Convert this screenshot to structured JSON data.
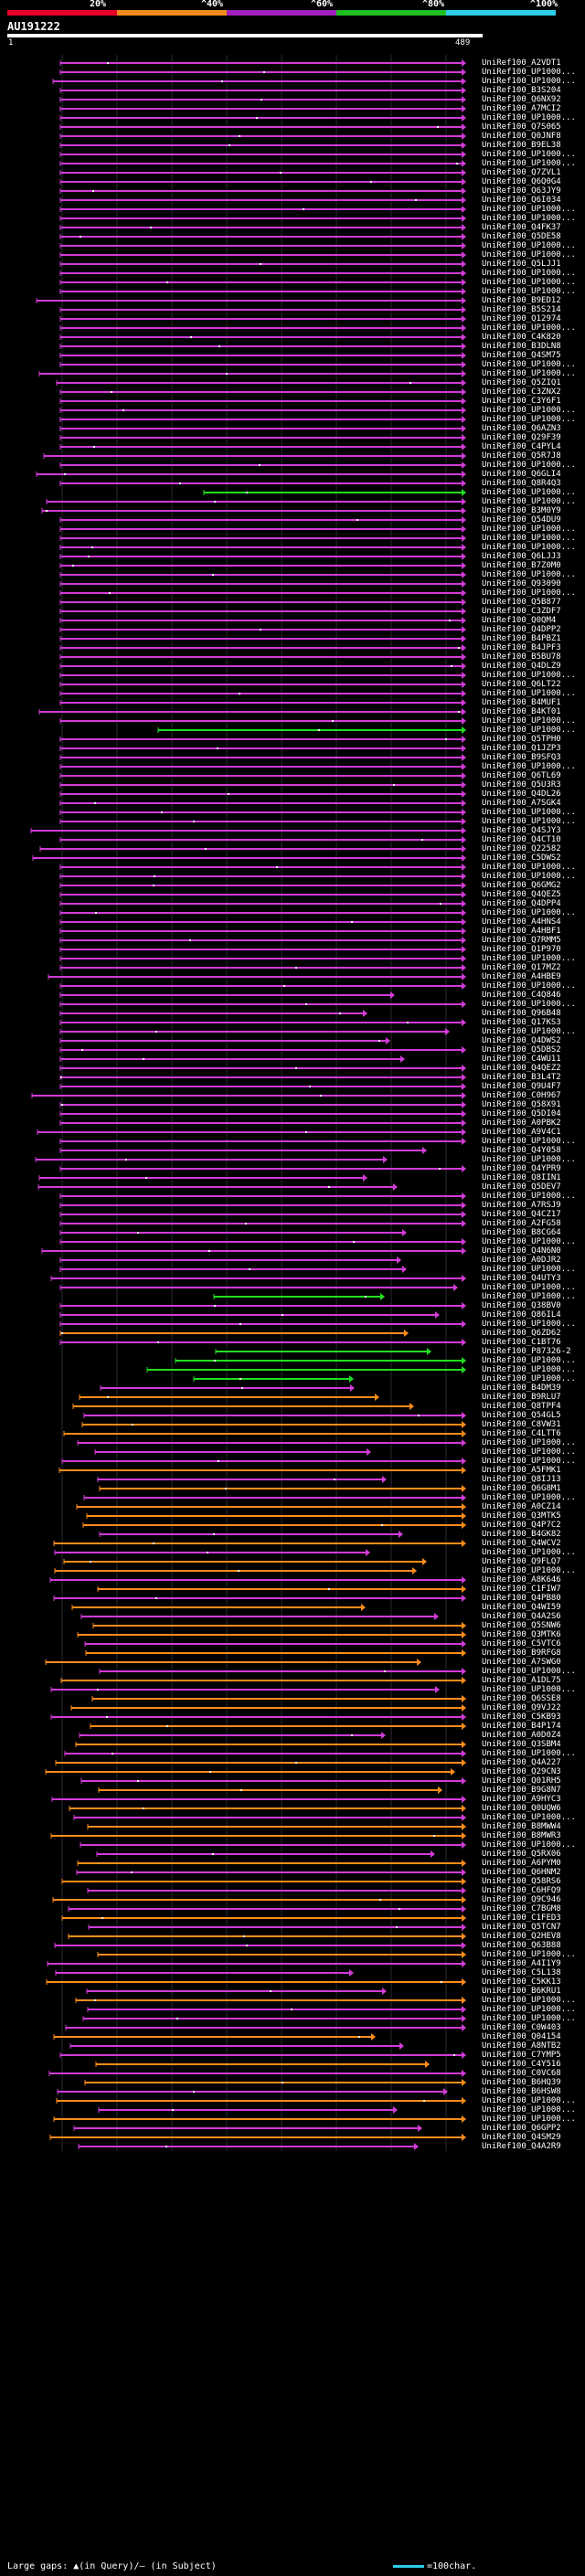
{
  "scale": {
    "labels": [
      "20%",
      "^40%",
      "^60%",
      "^80%",
      "^100%"
    ],
    "colors": [
      "#e8002a",
      "#f28c1a",
      "#a01fbd",
      "#1fbf1f",
      "#2ccde6"
    ]
  },
  "query": {
    "name": "AU191222",
    "start": "1",
    "end": "489"
  },
  "colors": {
    "magenta": "#d23bd8",
    "orange": "#ff8c1a",
    "green": "#22dd22"
  },
  "hits": [
    {
      "label": "UniRef100_A2VDT1",
      "color": "magenta"
    },
    {
      "label": "UniRef100_UP1000...",
      "color": "magenta"
    },
    {
      "label": "UniRef100_UP1000...",
      "color": "magenta"
    },
    {
      "label": "UniRef100_B3S204",
      "color": "magenta"
    },
    {
      "label": "UniRef100_Q6NX92",
      "color": "magenta"
    },
    {
      "label": "UniRef100_A7MCI2",
      "color": "magenta"
    },
    {
      "label": "UniRef100_UP1000...",
      "color": "magenta"
    },
    {
      "label": "UniRef100_Q7S065",
      "color": "magenta"
    },
    {
      "label": "UniRef100_Q0JNF8",
      "color": "magenta"
    },
    {
      "label": "UniRef100_B9EL38",
      "color": "magenta"
    },
    {
      "label": "UniRef100_UP1000...",
      "color": "magenta"
    },
    {
      "label": "UniRef100_UP1000...",
      "color": "magenta"
    },
    {
      "label": "UniRef100_Q7ZVL1",
      "color": "magenta"
    },
    {
      "label": "UniRef100_Q6Q0G4",
      "color": "magenta"
    },
    {
      "label": "UniRef100_Q63JY9",
      "color": "magenta"
    },
    {
      "label": "UniRef100_Q6I034",
      "color": "magenta"
    },
    {
      "label": "UniRef100_UP1000...",
      "color": "magenta"
    },
    {
      "label": "UniRef100_UP1000...",
      "color": "magenta"
    },
    {
      "label": "UniRef100_Q4FK37",
      "color": "magenta"
    },
    {
      "label": "UniRef100_Q5DE58",
      "color": "magenta"
    },
    {
      "label": "UniRef100_UP1000...",
      "color": "magenta"
    },
    {
      "label": "UniRef100_UP1000...",
      "color": "magenta"
    },
    {
      "label": "UniRef100_Q5LJJ1",
      "color": "magenta"
    },
    {
      "label": "UniRef100_UP1000...",
      "color": "magenta"
    },
    {
      "label": "UniRef100_UP1000...",
      "color": "magenta"
    },
    {
      "label": "UniRef100_UP1000...",
      "color": "magenta"
    },
    {
      "label": "UniRef100_B9ED12",
      "color": "magenta"
    },
    {
      "label": "UniRef100_B5S214",
      "color": "magenta"
    },
    {
      "label": "UniRef100_Q12974",
      "color": "magenta"
    },
    {
      "label": "UniRef100_UP1000...",
      "color": "magenta"
    },
    {
      "label": "UniRef100_C4K820",
      "color": "magenta"
    },
    {
      "label": "UniRef100_B3DLN8",
      "color": "magenta"
    },
    {
      "label": "UniRef100_Q4SM75",
      "color": "magenta"
    },
    {
      "label": "UniRef100_UP1000...",
      "color": "magenta"
    },
    {
      "label": "UniRef100_UP1000...",
      "color": "magenta"
    },
    {
      "label": "UniRef100_Q5ZIQ1",
      "color": "magenta"
    },
    {
      "label": "UniRef100_C3ZNX2",
      "color": "magenta"
    },
    {
      "label": "UniRef100_C3Y6F1",
      "color": "magenta"
    },
    {
      "label": "UniRef100_UP1000...",
      "color": "magenta"
    },
    {
      "label": "UniRef100_UP1000...",
      "color": "magenta"
    },
    {
      "label": "UniRef100_Q6AZN3",
      "color": "magenta"
    },
    {
      "label": "UniRef100_Q29F39",
      "color": "magenta"
    },
    {
      "label": "UniRef100_C4PYL4",
      "color": "magenta"
    },
    {
      "label": "UniRef100_Q5R7J8",
      "color": "magenta"
    },
    {
      "label": "UniRef100_UP1000...",
      "color": "magenta"
    },
    {
      "label": "UniRef100_Q6GLI4",
      "color": "magenta"
    },
    {
      "label": "UniRef100_Q8R4Q3",
      "color": "magenta"
    },
    {
      "label": "UniRef100_UP1000...",
      "color": "green"
    },
    {
      "label": "UniRef100_UP1000...",
      "color": "magenta"
    },
    {
      "label": "UniRef100_B3M0Y9",
      "color": "magenta"
    },
    {
      "label": "UniRef100_Q54DU9",
      "color": "magenta"
    },
    {
      "label": "UniRef100_UP1000...",
      "color": "magenta"
    },
    {
      "label": "UniRef100_UP1000...",
      "color": "magenta"
    },
    {
      "label": "UniRef100_UP1000...",
      "color": "magenta"
    },
    {
      "label": "UniRef100_Q6LJJ3",
      "color": "magenta"
    },
    {
      "label": "UniRef100_B7Z0M0",
      "color": "magenta"
    },
    {
      "label": "UniRef100_UP1000...",
      "color": "magenta"
    },
    {
      "label": "UniRef100_Q93090",
      "color": "magenta"
    },
    {
      "label": "UniRef100_UP1000...",
      "color": "magenta"
    },
    {
      "label": "UniRef100_Q5B877",
      "color": "magenta"
    },
    {
      "label": "UniRef100_C3ZDF7",
      "color": "magenta"
    },
    {
      "label": "UniRef100_Q0QM4",
      "color": "magenta"
    },
    {
      "label": "UniRef100_Q4DPP2",
      "color": "magenta"
    },
    {
      "label": "UniRef100_B4PBZ1",
      "color": "magenta"
    },
    {
      "label": "UniRef100_B4JPF3",
      "color": "magenta"
    },
    {
      "label": "UniRef100_B5BU78",
      "color": "magenta"
    },
    {
      "label": "UniRef100_Q4DLZ9",
      "color": "magenta"
    },
    {
      "label": "UniRef100_UP1000...",
      "color": "magenta"
    },
    {
      "label": "UniRef100_Q6LT22",
      "color": "magenta"
    },
    {
      "label": "UniRef100_UP1000...",
      "color": "magenta"
    },
    {
      "label": "UniRef100_B4MUF1",
      "color": "magenta"
    },
    {
      "label": "UniRef100_B4KT01",
      "color": "magenta"
    },
    {
      "label": "UniRef100_UP1000...",
      "color": "magenta"
    },
    {
      "label": "UniRef100_UP1000...",
      "color": "green"
    },
    {
      "label": "UniRef100_Q5TPH0",
      "color": "magenta"
    },
    {
      "label": "UniRef100_Q1JZP3",
      "color": "magenta"
    },
    {
      "label": "UniRef100_B9SFQ3",
      "color": "magenta"
    },
    {
      "label": "UniRef100_UP1000...",
      "color": "magenta"
    },
    {
      "label": "UniRef100_Q6TL69",
      "color": "magenta"
    },
    {
      "label": "UniRef100_Q5U3R3",
      "color": "magenta"
    },
    {
      "label": "UniRef100_Q4DL26",
      "color": "magenta"
    },
    {
      "label": "UniRef100_A7SGK4",
      "color": "magenta"
    },
    {
      "label": "UniRef100_UP1000...",
      "color": "magenta"
    },
    {
      "label": "UniRef100_UP1000...",
      "color": "magenta"
    },
    {
      "label": "UniRef100_Q4SJY3",
      "color": "magenta"
    },
    {
      "label": "UniRef100_Q4CT10",
      "color": "magenta"
    },
    {
      "label": "UniRef100_Q22582",
      "color": "magenta"
    },
    {
      "label": "UniRef100_C5DWS2",
      "color": "magenta"
    },
    {
      "label": "UniRef100_UP1000...",
      "color": "magenta"
    },
    {
      "label": "UniRef100_UP1000...",
      "color": "magenta"
    },
    {
      "label": "UniRef100_Q6GMG2",
      "color": "magenta"
    },
    {
      "label": "UniRef100_Q4QEZ5",
      "color": "magenta"
    },
    {
      "label": "UniRef100_Q4DPP4",
      "color": "magenta"
    },
    {
      "label": "UniRef100_UP1000...",
      "color": "magenta"
    },
    {
      "label": "UniRef100_A4HNS4",
      "color": "magenta"
    },
    {
      "label": "UniRef100_A4HBF1",
      "color": "magenta"
    },
    {
      "label": "UniRef100_Q7RMM5",
      "color": "magenta"
    },
    {
      "label": "UniRef100_Q1P970",
      "color": "magenta"
    },
    {
      "label": "UniRef100_UP1000...",
      "color": "magenta"
    },
    {
      "label": "UniRef100_Q17MZ2",
      "color": "magenta"
    },
    {
      "label": "UniRef100_A4HBE9",
      "color": "magenta"
    },
    {
      "label": "UniRef100_UP1000...",
      "color": "magenta"
    },
    {
      "label": "UniRef100_C4Q846",
      "color": "magenta"
    },
    {
      "label": "UniRef100_UP1000...",
      "color": "magenta"
    },
    {
      "label": "UniRef100_Q96B48",
      "color": "magenta"
    },
    {
      "label": "UniRef100_Q17KS3",
      "color": "magenta"
    },
    {
      "label": "UniRef100_UP1000...",
      "color": "magenta"
    },
    {
      "label": "UniRef100_Q4DWS2",
      "color": "magenta"
    },
    {
      "label": "UniRef100_Q5DBS2",
      "color": "magenta"
    },
    {
      "label": "UniRef100_C4WU11",
      "color": "magenta"
    },
    {
      "label": "UniRef100_Q4QEZ2",
      "color": "magenta"
    },
    {
      "label": "UniRef100_B3L4T2",
      "color": "magenta"
    },
    {
      "label": "UniRef100_Q9U4F7",
      "color": "magenta"
    },
    {
      "label": "UniRef100_C0H967",
      "color": "magenta"
    },
    {
      "label": "UniRef100_Q58X91",
      "color": "magenta"
    },
    {
      "label": "UniRef100_Q5DI04",
      "color": "magenta"
    },
    {
      "label": "UniRef100_A0PBK2",
      "color": "magenta"
    },
    {
      "label": "UniRef100_A9V4C1",
      "color": "magenta"
    },
    {
      "label": "UniRef100_UP1000...",
      "color": "magenta"
    },
    {
      "label": "UniRef100_Q4Y058",
      "color": "magenta"
    },
    {
      "label": "UniRef100_UP1000...",
      "color": "magenta"
    },
    {
      "label": "UniRef100_Q4YPR9",
      "color": "magenta"
    },
    {
      "label": "UniRef100_Q8IIN1",
      "color": "magenta"
    },
    {
      "label": "UniRef100_Q5DEV7",
      "color": "magenta"
    },
    {
      "label": "UniRef100_UP1000...",
      "color": "magenta"
    },
    {
      "label": "UniRef100_A7RSJ9",
      "color": "magenta"
    },
    {
      "label": "UniRef100_Q4CZ17",
      "color": "magenta"
    },
    {
      "label": "UniRef100_A2FG58",
      "color": "magenta"
    },
    {
      "label": "UniRef100_B8CG64",
      "color": "magenta"
    },
    {
      "label": "UniRef100_UP1000...",
      "color": "magenta"
    },
    {
      "label": "UniRef100_Q4N6N0",
      "color": "magenta"
    },
    {
      "label": "UniRef100_A0DJR2",
      "color": "magenta"
    },
    {
      "label": "UniRef100_UP1000...",
      "color": "magenta"
    },
    {
      "label": "UniRef100_Q4UTY3",
      "color": "magenta"
    },
    {
      "label": "UniRef100_UP1000...",
      "color": "magenta"
    },
    {
      "label": "UniRef100_UP1000...",
      "color": "green"
    },
    {
      "label": "UniRef100_Q38BV0",
      "color": "magenta"
    },
    {
      "label": "UniRef100_Q86IL4",
      "color": "magenta"
    },
    {
      "label": "UniRef100_UP1000...",
      "color": "magenta"
    },
    {
      "label": "UniRef100_Q6ZD62",
      "color": "orange"
    },
    {
      "label": "UniRef100_C1BT76",
      "color": "magenta"
    },
    {
      "label": "UniRef100_P87326-2",
      "color": "green"
    },
    {
      "label": "UniRef100_UP1000...",
      "color": "green"
    },
    {
      "label": "UniRef100_UP1000...",
      "color": "green"
    },
    {
      "label": "UniRef100_UP1000...",
      "color": "green"
    },
    {
      "label": "UniRef100_B4DM39",
      "color": "magenta"
    },
    {
      "label": "UniRef100_B9RLU7",
      "color": "orange"
    },
    {
      "label": "UniRef100_Q8TPF4",
      "color": "orange"
    },
    {
      "label": "UniRef100_Q54GL5",
      "color": "magenta"
    },
    {
      "label": "UniRef100_C8VW31",
      "color": "orange"
    },
    {
      "label": "UniRef100_C4LTT6",
      "color": "orange"
    },
    {
      "label": "UniRef100_UP1000...",
      "color": "magenta"
    },
    {
      "label": "UniRef100_UP1000...",
      "color": "magenta"
    },
    {
      "label": "UniRef100_UP1000...",
      "color": "magenta"
    },
    {
      "label": "UniRef100_A5FMK1",
      "color": "orange"
    },
    {
      "label": "UniRef100_Q8IJ13",
      "color": "magenta"
    },
    {
      "label": "UniRef100_Q6G8M1",
      "color": "orange"
    },
    {
      "label": "UniRef100_UP1000...",
      "color": "magenta"
    },
    {
      "label": "UniRef100_A0CZ14",
      "color": "orange"
    },
    {
      "label": "UniRef100_Q3MTK5",
      "color": "orange"
    },
    {
      "label": "UniRef100_Q4P7C2",
      "color": "orange"
    },
    {
      "label": "UniRef100_B4GK82",
      "color": "magenta"
    },
    {
      "label": "UniRef100_Q4WCV2",
      "color": "orange"
    },
    {
      "label": "UniRef100_UP1000...",
      "color": "magenta"
    },
    {
      "label": "UniRef100_Q9FLQ7",
      "color": "orange"
    },
    {
      "label": "UniRef100_UP1000...",
      "color": "orange"
    },
    {
      "label": "UniRef100_A8K646",
      "color": "magenta"
    },
    {
      "label": "UniRef100_C1FIW7",
      "color": "orange"
    },
    {
      "label": "UniRef100_Q4PB80",
      "color": "magenta"
    },
    {
      "label": "UniRef100_Q4WI59",
      "color": "orange"
    },
    {
      "label": "UniRef100_Q4A2S6",
      "color": "magenta"
    },
    {
      "label": "UniRef100_Q5SNW6",
      "color": "orange"
    },
    {
      "label": "UniRef100_Q3MTK6",
      "color": "orange"
    },
    {
      "label": "UniRef100_C5VTC6",
      "color": "magenta"
    },
    {
      "label": "UniRef100_B9RFG8",
      "color": "orange"
    },
    {
      "label": "UniRef100_A7SWG0",
      "color": "orange"
    },
    {
      "label": "UniRef100_UP1000...",
      "color": "magenta"
    },
    {
      "label": "UniRef100_A1DL75",
      "color": "orange"
    },
    {
      "label": "UniRef100_UP1000...",
      "color": "magenta"
    },
    {
      "label": "UniRef100_Q6SSE8",
      "color": "orange"
    },
    {
      "label": "UniRef100_Q9VJ22",
      "color": "orange"
    },
    {
      "label": "UniRef100_C5KB93",
      "color": "magenta"
    },
    {
      "label": "UniRef100_B4P174",
      "color": "orange"
    },
    {
      "label": "UniRef100_A0D0Z4",
      "color": "magenta"
    },
    {
      "label": "UniRef100_Q3SBM4",
      "color": "orange"
    },
    {
      "label": "UniRef100_UP1000...",
      "color": "magenta"
    },
    {
      "label": "UniRef100_Q4A227",
      "color": "orange"
    },
    {
      "label": "UniRef100_Q29CN3",
      "color": "orange"
    },
    {
      "label": "UniRef100_Q01RH5",
      "color": "magenta"
    },
    {
      "label": "UniRef100_B9G8N7",
      "color": "orange"
    },
    {
      "label": "UniRef100_A9HYC3",
      "color": "magenta"
    },
    {
      "label": "UniRef100_Q0UQW6",
      "color": "orange"
    },
    {
      "label": "UniRef100_UP1000...",
      "color": "magenta"
    },
    {
      "label": "UniRef100_B8MWW4",
      "color": "orange"
    },
    {
      "label": "UniRef100_B8MWR3",
      "color": "orange"
    },
    {
      "label": "UniRef100_UP1000...",
      "color": "magenta"
    },
    {
      "label": "UniRef100_Q5RX06",
      "color": "magenta"
    },
    {
      "label": "UniRef100_A6PYM0",
      "color": "orange"
    },
    {
      "label": "UniRef100_Q6HNM2",
      "color": "magenta"
    },
    {
      "label": "UniRef100_Q58RS6",
      "color": "orange"
    },
    {
      "label": "UniRef100_C6HFQ9",
      "color": "magenta"
    },
    {
      "label": "UniRef100_Q9C946",
      "color": "orange"
    },
    {
      "label": "UniRef100_C7BGM8",
      "color": "magenta"
    },
    {
      "label": "UniRef100_C1FED3",
      "color": "orange"
    },
    {
      "label": "UniRef100_Q5TCN7",
      "color": "magenta"
    },
    {
      "label": "UniRef100_Q2HEV8",
      "color": "orange"
    },
    {
      "label": "UniRef100_Q63B88",
      "color": "magenta"
    },
    {
      "label": "UniRef100_UP1000...",
      "color": "orange"
    },
    {
      "label": "UniRef100_A4I1Y9",
      "color": "magenta"
    },
    {
      "label": "UniRef100_C5L138",
      "color": "magenta"
    },
    {
      "label": "UniRef100_C5KK13",
      "color": "orange"
    },
    {
      "label": "UniRef100_B6KRU1",
      "color": "magenta"
    },
    {
      "label": "UniRef100_UP1000...",
      "color": "orange"
    },
    {
      "label": "UniRef100_UP1000...",
      "color": "magenta"
    },
    {
      "label": "UniRef100_UP1000...",
      "color": "magenta"
    },
    {
      "label": "UniRef100_C0W403",
      "color": "magenta"
    },
    {
      "label": "UniRef100_Q04154",
      "color": "orange"
    },
    {
      "label": "UniRef100_A8NTB2",
      "color": "magenta"
    },
    {
      "label": "UniRef100_C7YMP5",
      "color": "magenta"
    },
    {
      "label": "UniRef100_C4Y516",
      "color": "orange"
    },
    {
      "label": "UniRef100_C0VC68",
      "color": "magenta"
    },
    {
      "label": "UniRef100_B6HQ39",
      "color": "orange"
    },
    {
      "label": "UniRef100_B6HSW8",
      "color": "magenta"
    },
    {
      "label": "UniRef100_UP1000...",
      "color": "orange"
    },
    {
      "label": "UniRef100_UP1000...",
      "color": "magenta"
    },
    {
      "label": "UniRef100_UP1000...",
      "color": "orange"
    },
    {
      "label": "UniRef100_Q6GPP2",
      "color": "magenta"
    },
    {
      "label": "UniRef100_Q4SM29",
      "color": "orange"
    },
    {
      "label": "UniRef100_Q4A2R9",
      "color": "magenta"
    }
  ],
  "footer": {
    "text": "Large gaps: ▲(in Query)/– (in Subject)"
  },
  "legend": {
    "text": "=100char."
  }
}
